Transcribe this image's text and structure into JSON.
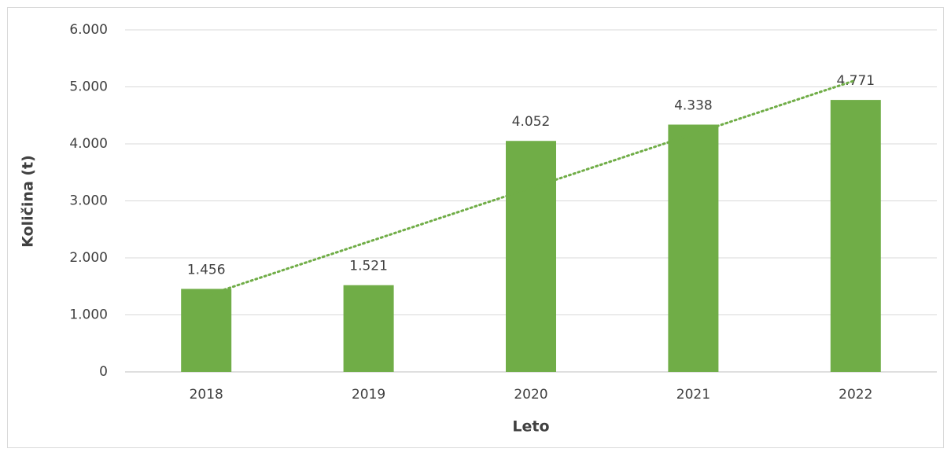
{
  "chart_data": {
    "type": "bar",
    "x_label": "Leto",
    "y_label": "Količina (t)",
    "categories": [
      "2018",
      "2019",
      "2020",
      "2021",
      "2022"
    ],
    "values": [
      1456,
      1521,
      4052,
      4338,
      4771
    ],
    "value_labels": [
      "1.456",
      "1.521",
      "4.052",
      "4.338",
      "4.771"
    ],
    "color": "#70ad47",
    "ylim": [
      0,
      6000
    ],
    "yticks": [
      0,
      {
        "value": 1000,
        "label": "1.000"
      },
      {
        "value": 2000,
        "label": "2.000"
      },
      {
        "value": 3000,
        "label": "3.000"
      },
      {
        "value": 4000,
        "label": "4.000"
      },
      {
        "value": 5000,
        "label": "5.000"
      },
      {
        "value": 6000,
        "label": "6.000"
      }
    ],
    "grid": true,
    "trendline": "linear",
    "trendline_color": "#70ad47"
  }
}
